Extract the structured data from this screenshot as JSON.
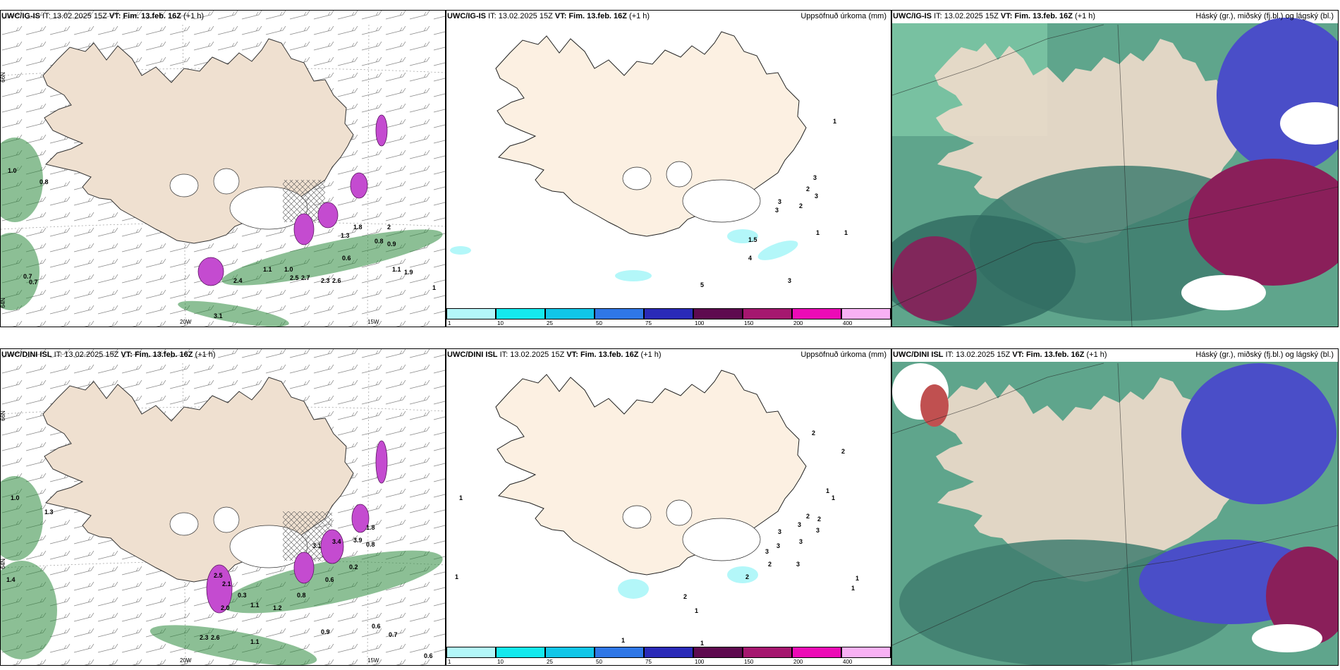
{
  "panels": [
    {
      "id": "p1",
      "model": "UWC/IG-IS",
      "it_label": "IT:",
      "it": "13.02.2025 15Z",
      "vt_label": "VT:",
      "vt": "Fim. 13.feb. 16Z",
      "lead": "(+1 h)",
      "right_title": ""
    },
    {
      "id": "p2",
      "model": "UWC/IG-IS",
      "it_label": "IT:",
      "it": "13.02.2025 15Z",
      "vt_label": "VT:",
      "vt": "Fim. 13.feb. 16Z",
      "lead": "(+1 h)",
      "right_title": "Uppsöfnuð úrkoma (mm)"
    },
    {
      "id": "p3",
      "model": "UWC/IG-IS",
      "it_label": "IT:",
      "it": "13.02.2025 15Z",
      "vt_label": "VT:",
      "vt": "Fim. 13.feb. 16Z",
      "lead": "(+1 h)",
      "right_title": "Háský (gr.), miðský (fj.bl.) og lágský (bl.)"
    },
    {
      "id": "p4",
      "model": "UWC/DINI ISL",
      "it_label": "IT:",
      "it": "13.02.2025 15Z",
      "vt_label": "VT:",
      "vt": "Fim. 13.feb. 16Z",
      "lead": "(+1 h)",
      "right_title": ""
    },
    {
      "id": "p5",
      "model": "UWC/DINI ISL",
      "it_label": "IT:",
      "it": "13.02.2025 15Z",
      "vt_label": "VT:",
      "vt": "Fim. 13.feb. 16Z",
      "lead": "(+1 h)",
      "right_title": "Uppsöfnuð úrkoma (mm)"
    },
    {
      "id": "p6",
      "model": "UWC/DINI ISL",
      "it_label": "IT:",
      "it": "13.02.2025 15Z",
      "vt_label": "VT:",
      "vt": "Fim. 13.feb. 16Z",
      "lead": "(+1 h)",
      "right_title": "Háský (gr.), miðský (fj.bl.) og lágský (bl.)"
    }
  ],
  "axis_labels": {
    "lat_66": "66N",
    "lat_64": "64N",
    "lon_25": "25W",
    "lon_20": "20W",
    "lon_15": "15W"
  },
  "colorbar": {
    "ticks": [
      "1",
      "10",
      "25",
      "50",
      "75",
      "100",
      "150",
      "200",
      "400"
    ],
    "colors": [
      "#b3f7f9",
      "#14e9ee",
      "#11c6e8",
      "#2f77e7",
      "#2a2ab8",
      "#5e0a4f",
      "#a5176f",
      "#ec0bb6",
      "#f8b1f4"
    ]
  },
  "values": {
    "p1": [
      "1.0",
      "0.8",
      "0.7",
      "0.7",
      "2.4",
      "1.1",
      "1.0",
      "2.5",
      "2.7",
      "2.3",
      "2.6",
      "0.6",
      "1.3",
      "1.8",
      "2",
      "0.8",
      "0.9",
      "1.1",
      "1.9",
      "1",
      "3.1"
    ],
    "p2": [
      "1",
      "3",
      "2",
      "3",
      "3",
      "2",
      "3",
      "1.5",
      "1",
      "1",
      "4",
      "5",
      "3"
    ],
    "p4": [
      "1.0",
      "1.3",
      "1.4",
      "2.1",
      "0.3",
      "2.0",
      "1.1",
      "1.2",
      "0.8",
      "0.6",
      "0.2",
      "0.9",
      "0.6",
      "0.7",
      "0.6",
      "1.1",
      "2.3",
      "2.6",
      "1.8",
      "0.8",
      "3.4",
      "3.9",
      "3.1",
      "2.5"
    ],
    "p5": [
      "1",
      "1",
      "2",
      "2",
      "1",
      "1",
      "2",
      "2",
      "3",
      "3",
      "3",
      "3",
      "3",
      "3",
      "3",
      "2",
      "2",
      "1",
      "1",
      "2",
      "1",
      "1",
      "1"
    ]
  }
}
